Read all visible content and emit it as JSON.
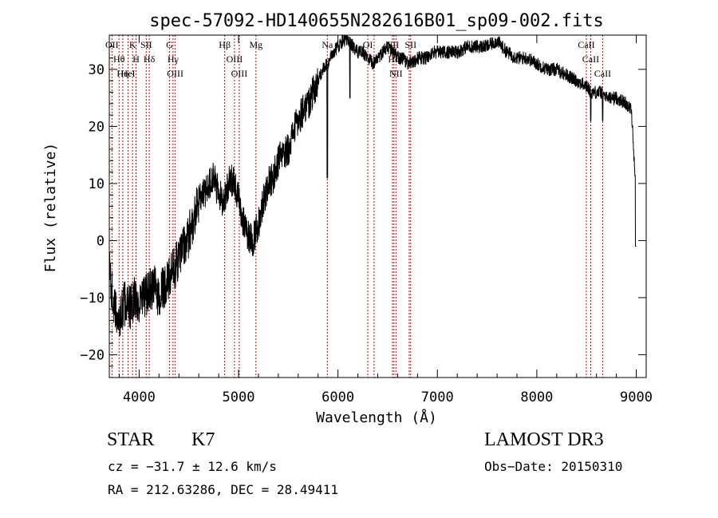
{
  "chart_data": {
    "type": "line",
    "title": "spec-57092-HD140655N282616B01_sp09-002.fits",
    "xlabel": "Wavelength (Å)",
    "ylabel": "Flux (relative)",
    "xlim": [
      3700,
      9100
    ],
    "ylim": [
      -24,
      36
    ],
    "xticks": [
      4000,
      5000,
      6000,
      7000,
      8000,
      9000
    ],
    "xtick_labels": [
      "4000",
      "5000",
      "6000",
      "7000",
      "8000",
      "9000"
    ],
    "yticks": [
      -20,
      -10,
      0,
      10,
      20,
      30
    ],
    "ytick_labels": [
      "−20",
      "−10",
      "0",
      "10",
      "20",
      "30"
    ],
    "series": [
      {
        "name": "Flux",
        "x": [
          3700,
          3750,
          3800,
          3850,
          3900,
          3950,
          4000,
          4050,
          4100,
          4150,
          4200,
          4250,
          4300,
          4350,
          4400,
          4450,
          4500,
          4550,
          4600,
          4650,
          4700,
          4750,
          4800,
          4850,
          4900,
          4950,
          5000,
          5050,
          5100,
          5150,
          5200,
          5250,
          5300,
          5350,
          5400,
          5450,
          5500,
          5550,
          5600,
          5650,
          5700,
          5750,
          5800,
          5850,
          5900,
          5950,
          6000,
          6050,
          6100,
          6150,
          6200,
          6250,
          6300,
          6350,
          6400,
          6450,
          6500,
          6550,
          6600,
          6650,
          6700,
          6750,
          6800,
          6850,
          6900,
          6950,
          7000,
          7100,
          7200,
          7300,
          7400,
          7500,
          7600,
          7650,
          7700,
          7800,
          7900,
          8000,
          8100,
          8200,
          8300,
          8400,
          8500,
          8550,
          8600,
          8650,
          8700,
          8800,
          8900,
          8950,
          9000
        ],
        "values": [
          -5,
          -12,
          -14,
          -11,
          -12,
          -10,
          -11,
          -10,
          -9,
          -8,
          -10,
          -8,
          -7,
          -5,
          -3,
          -1,
          1,
          4,
          7,
          8,
          10,
          11,
          8,
          7,
          10,
          11,
          7,
          3,
          1,
          0,
          3,
          7,
          10,
          11,
          14,
          15,
          16,
          19,
          21,
          23,
          24,
          26,
          28,
          30,
          31,
          33,
          34,
          35,
          35,
          34,
          33,
          33,
          32,
          31,
          32,
          33,
          34,
          33,
          32,
          32,
          31,
          31,
          32,
          32,
          32,
          33,
          33,
          33,
          33,
          34,
          34,
          34,
          35,
          34,
          33,
          32,
          32,
          31,
          30,
          30,
          29,
          28,
          27,
          26,
          26,
          26,
          25,
          25,
          24,
          23,
          8
        ]
      }
    ],
    "lines": [
      {
        "label": "Hθ",
        "wave": 3798
      },
      {
        "label": "OII",
        "wave": 3727
      },
      {
        "label": "Hη",
        "wave": 3835
      },
      {
        "label": "K",
        "wave": 3934
      },
      {
        "label": "HeI",
        "wave": 3889
      },
      {
        "label": "H",
        "wave": 3969
      },
      {
        "label": "Hδ",
        "wave": 4102
      },
      {
        "label": "SII",
        "wave": 4072
      },
      {
        "label": "OIII",
        "wave": 4363
      },
      {
        "label": "Hγ",
        "wave": 4341
      },
      {
        "label": "G",
        "wave": 4305
      },
      {
        "label": "Hβ",
        "wave": 4861
      },
      {
        "label": "OIII",
        "wave": 5007
      },
      {
        "label": "OIII",
        "wave": 4959
      },
      {
        "label": "Mg",
        "wave": 5175
      },
      {
        "label": "Na",
        "wave": 5893
      },
      {
        "label": "OI",
        "wave": 6300
      },
      {
        "label": "OI",
        "wave": 6363
      },
      {
        "label": "NII",
        "wave": 6548
      },
      {
        "label": "Hα",
        "wave": 6563
      },
      {
        "label": "NII",
        "wave": 6583
      },
      {
        "label": "SII",
        "wave": 6716
      },
      {
        "label": "SII",
        "wave": 6731
      },
      {
        "label": "CaII",
        "wave": 8498
      },
      {
        "label": "CaII",
        "wave": 8542
      },
      {
        "label": "CaII",
        "wave": 8662
      }
    ]
  },
  "info": {
    "class": "STAR",
    "subclass": "K7",
    "survey": "LAMOST DR3",
    "cz": "cz = −31.7 ± 12.6 km/s",
    "obs_date": "Obs−Date: 20150310",
    "coords": "RA = 212.63286, DEC =  28.49411"
  },
  "colors": {
    "spectrum": "#000000",
    "line_markers": "#cc0000",
    "axes": "#000000"
  }
}
